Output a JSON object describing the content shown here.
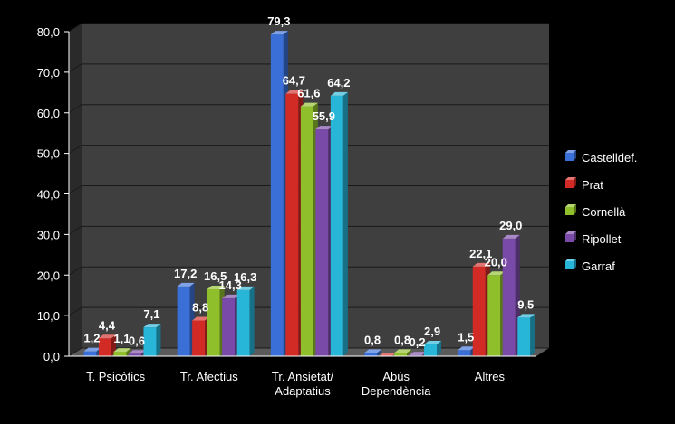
{
  "chart_data": {
    "type": "bar",
    "style": "3d-clustered",
    "categories": [
      [
        "T. Psicòtics"
      ],
      [
        "Tr. Afectius"
      ],
      [
        "Tr. Ansietat/",
        "Adaptatius"
      ],
      [
        "Abús",
        "Dependència"
      ],
      [
        "Altres"
      ]
    ],
    "series": [
      {
        "name": "Castelldef.",
        "color": "#3a6fd8",
        "values": [
          1.2,
          17.2,
          79.3,
          0.8,
          1.5
        ],
        "labels": [
          "1,2",
          "17,2",
          "79,3",
          "0,8",
          "1,5"
        ]
      },
      {
        "name": "Prat",
        "color": "#d22b26",
        "values": [
          4.4,
          8.8,
          64.7,
          0.0,
          22.1
        ],
        "labels": [
          "4,4",
          "8,8",
          "64,7",
          "",
          "22,1"
        ]
      },
      {
        "name": "Cornellà",
        "color": "#8fbf2b",
        "values": [
          1.1,
          16.5,
          61.6,
          0.8,
          20.0
        ],
        "labels": [
          "1,1",
          "16,5",
          "61,6",
          "0,8",
          "20,0"
        ]
      },
      {
        "name": "Ripollet",
        "color": "#7a4aa8",
        "values": [
          0.6,
          14.3,
          55.9,
          0.2,
          29.0
        ],
        "labels": [
          "0,6",
          "14,3",
          "55,9",
          "0,2",
          "29,0"
        ]
      },
      {
        "name": "Garraf",
        "color": "#27b5d8",
        "values": [
          7.1,
          16.3,
          64.2,
          2.9,
          9.5
        ],
        "labels": [
          "7,1",
          "16,3",
          "64,2",
          "2,9",
          "9,5"
        ]
      }
    ],
    "yticks": [
      "0,0",
      "10,0",
      "20,0",
      "30,0",
      "40,0",
      "50,0",
      "60,0",
      "70,0",
      "80,0"
    ],
    "ylim": [
      0,
      80
    ],
    "grid": true,
    "legend": "right"
  }
}
